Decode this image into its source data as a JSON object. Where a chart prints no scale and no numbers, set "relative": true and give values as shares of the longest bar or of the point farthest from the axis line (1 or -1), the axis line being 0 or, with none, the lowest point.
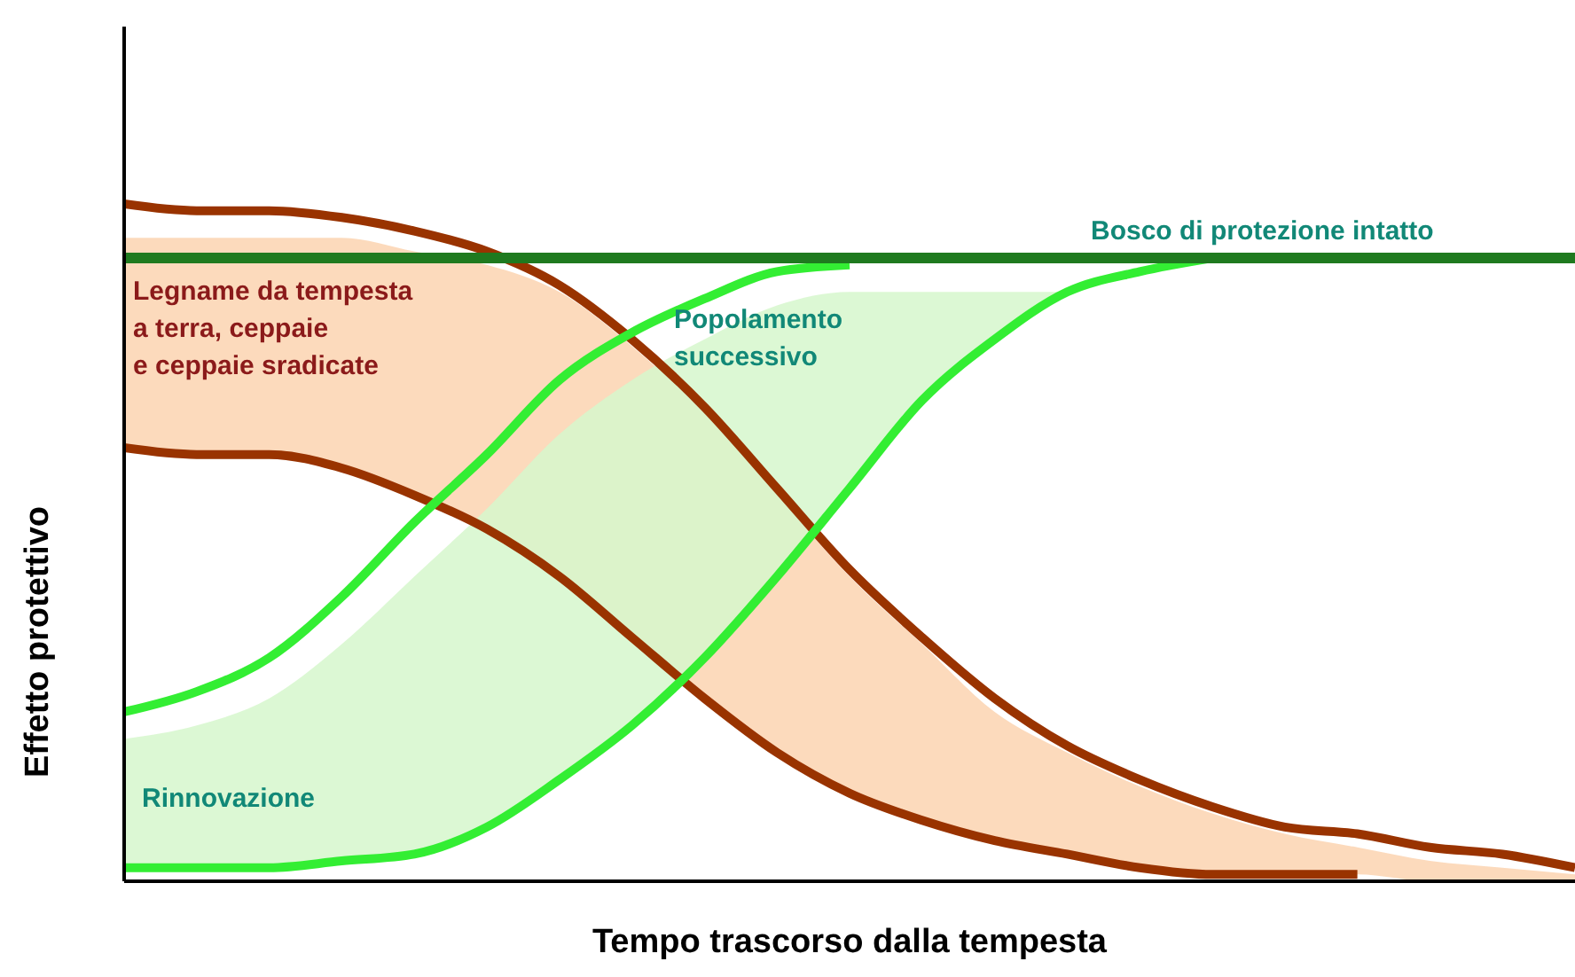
{
  "chart_data": {
    "type": "line",
    "relative": true,
    "xlabel": "Tempo trascorso dalla tempesta",
    "ylabel": "Effetto protettivo",
    "marker": "none",
    "line_style": "solid",
    "annotations": [
      "Rinnovazione",
      "Popolamento\nsuccessivo"
    ],
    "categories": [
      null,
      null,
      null,
      null,
      null,
      null,
      null,
      null,
      null,
      null,
      null,
      null,
      null,
      null,
      null,
      null,
      null,
      null,
      null,
      null,
      null
    ],
    "series": [
      {
        "name": "Legname da tempesta\na terra, ceppaie\ne ceppaie sradicate",
        "color": "#993300",
        "values": [
          1.0,
          0.99,
          0.99,
          0.98,
          0.96,
          0.93,
          0.88,
          0.8,
          0.7,
          0.58,
          0.46,
          0.36,
          0.27,
          0.2,
          0.15,
          0.11,
          0.08,
          0.07,
          0.05,
          0.04,
          0.02
        ],
        "upper": [
          0.95,
          0.95,
          0.95,
          0.95,
          0.93,
          0.91,
          0.87,
          0.79,
          0.69,
          0.57,
          0.45,
          0.35,
          0.25,
          0.19,
          0.14,
          0.1,
          0.07,
          0.05,
          0.03,
          0.02,
          0.01
        ],
        "lower": [
          0.64,
          0.63,
          0.63,
          0.61,
          0.57,
          0.52,
          0.45,
          0.36,
          0.27,
          0.19,
          0.13,
          0.09,
          0.06,
          0.04,
          0.02,
          0.01,
          0.01,
          0.01,
          0,
          0,
          0
        ]
      },
      {
        "color": "#993300",
        "values": [
          0.64,
          0.63,
          0.63,
          0.61,
          0.57,
          0.52,
          0.45,
          0.36,
          0.27,
          0.19,
          0.13,
          0.09,
          0.06,
          0.04,
          0.02,
          0.01,
          0.01,
          0.01,
          null,
          null,
          null
        ]
      },
      {
        "color": "#33ee33",
        "values": [
          0.25,
          0.28,
          0.33,
          0.42,
          0.53,
          0.63,
          0.74,
          0.81,
          0.86,
          0.9,
          0.91,
          null,
          null,
          null,
          null,
          null,
          null,
          null,
          null,
          null,
          null
        ]
      },
      {
        "color": "#33ee33",
        "values": [
          0.02,
          0.02,
          0.02,
          0.03,
          0.04,
          0.08,
          0.15,
          0.23,
          0.33,
          0.45,
          0.58,
          0.71,
          0.8,
          0.87,
          0.9,
          0.92,
          null,
          null,
          null,
          null,
          null
        ],
        "upper": [
          0.21,
          0.23,
          0.27,
          0.35,
          0.45,
          0.55,
          0.66,
          0.74,
          0.8,
          0.85,
          0.87,
          0.87,
          0.87,
          0.87,
          null,
          null,
          null,
          null,
          null,
          null,
          null
        ],
        "lower": [
          0.02,
          0.02,
          0.02,
          0.03,
          0.04,
          0.08,
          0.15,
          0.23,
          0.33,
          0.45,
          0.58,
          0.71,
          0.8,
          0.87,
          null,
          null,
          null,
          null,
          null,
          null,
          null
        ]
      },
      {
        "name": "Bosco di protezione intatto",
        "color": "#1f7a1f",
        "values": [
          0.92,
          0.92,
          0.92,
          0.92,
          0.92,
          0.92,
          0.92,
          0.92,
          0.92,
          0.92,
          0.92,
          0.92,
          0.92,
          0.92,
          0.92,
          0.92,
          0.92,
          0.92,
          0.92,
          0.92,
          0.92
        ]
      }
    ]
  }
}
